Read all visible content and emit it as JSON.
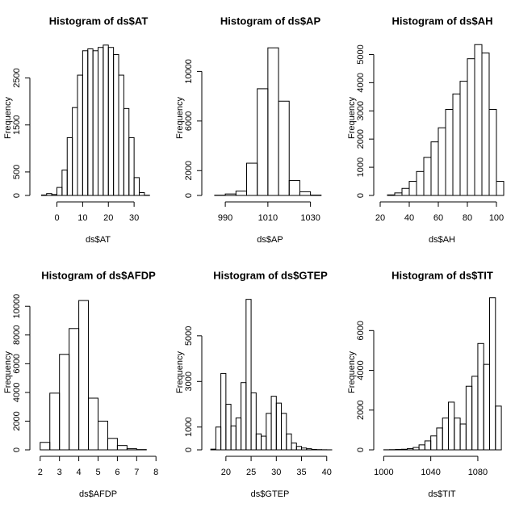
{
  "chart_data": [
    {
      "type": "histogram",
      "title": "Histogram of ds$AT",
      "xlabel": "ds$AT",
      "ylabel": "Frequency",
      "bins": [
        -6,
        -4,
        -2,
        0,
        2,
        4,
        6,
        8,
        10,
        12,
        14,
        16,
        18,
        20,
        22,
        24,
        26,
        28,
        30,
        32,
        34,
        36,
        38
      ],
      "counts": [
        10,
        40,
        20,
        170,
        540,
        1230,
        1870,
        2560,
        3080,
        3120,
        3080,
        3150,
        3200,
        3150,
        3000,
        2560,
        1850,
        1230,
        380,
        60,
        5,
        0
      ],
      "xlim": [
        -8,
        40
      ],
      "ylim": [
        0,
        3300
      ],
      "xticks": [
        0,
        10,
        20,
        30
      ],
      "yticks": [
        0,
        500,
        1500,
        2500
      ]
    },
    {
      "type": "histogram",
      "title": "Histogram of ds$AP",
      "xlabel": "ds$AP",
      "ylabel": "Frequency",
      "bins": [
        985,
        990,
        995,
        1000,
        1005,
        1010,
        1015,
        1020,
        1025,
        1030,
        1035
      ],
      "counts": [
        20,
        120,
        350,
        2600,
        8600,
        11900,
        7600,
        1200,
        300,
        30
      ],
      "xlim": [
        982,
        1040
      ],
      "ylim": [
        0,
        12500
      ],
      "xticks": [
        990,
        1010,
        1030
      ],
      "yticks": [
        0,
        2000,
        6000,
        10000
      ]
    },
    {
      "type": "histogram",
      "title": "Histogram of ds$AH",
      "xlabel": "ds$AH",
      "ylabel": "Frequency",
      "bins": [
        25,
        30,
        35,
        40,
        45,
        50,
        55,
        60,
        65,
        70,
        75,
        80,
        85,
        90,
        95,
        100,
        105
      ],
      "counts": [
        20,
        90,
        250,
        500,
        850,
        1350,
        1900,
        2400,
        3050,
        3600,
        4050,
        4850,
        5350,
        5050,
        3050,
        500
      ],
      "xlim": [
        20,
        105
      ],
      "ylim": [
        0,
        5500
      ],
      "xticks": [
        20,
        40,
        60,
        80,
        100
      ],
      "yticks": [
        0,
        1000,
        2000,
        3000,
        4000,
        5000
      ]
    },
    {
      "type": "histogram",
      "title": "Histogram of ds$AFDP",
      "xlabel": "ds$AFDP",
      "ylabel": "Frequency",
      "bins": [
        2,
        2.5,
        3,
        3.5,
        4,
        4.5,
        5,
        5.5,
        6,
        6.5,
        7,
        7.5
      ],
      "counts": [
        520,
        3950,
        6650,
        8450,
        10400,
        3600,
        2000,
        800,
        300,
        80,
        20
      ],
      "xlim": [
        1.8,
        8.2
      ],
      "ylim": [
        0,
        10800
      ],
      "xticks": [
        2,
        3,
        4,
        5,
        6,
        7,
        8
      ],
      "yticks": [
        0,
        2000,
        4000,
        6000,
        8000,
        10000
      ]
    },
    {
      "type": "histogram",
      "title": "Histogram of ds$GTEP",
      "xlabel": "ds$GTEP",
      "ylabel": "Frequency",
      "bins": [
        17,
        18,
        19,
        20,
        21,
        22,
        23,
        24,
        25,
        26,
        27,
        28,
        29,
        30,
        31,
        32,
        33,
        34,
        35,
        36,
        37,
        38,
        39,
        40,
        41
      ],
      "counts": [
        30,
        1000,
        3350,
        2000,
        1050,
        1400,
        2950,
        6600,
        2500,
        700,
        600,
        1600,
        2350,
        2050,
        1600,
        700,
        300,
        150,
        80,
        50,
        20,
        10,
        5,
        2
      ],
      "xlim": [
        16.5,
        41
      ],
      "ylim": [
        0,
        6800
      ],
      "xticks": [
        20,
        25,
        30,
        35,
        40
      ],
      "yticks": [
        0,
        1000,
        3000,
        5000
      ]
    },
    {
      "type": "histogram",
      "title": "Histogram of ds$TIT",
      "xlabel": "ds$TIT",
      "ylabel": "Frequency",
      "bins": [
        1000,
        1005,
        1010,
        1015,
        1020,
        1025,
        1030,
        1035,
        1040,
        1045,
        1050,
        1055,
        1060,
        1065,
        1070,
        1075,
        1080,
        1085,
        1090,
        1095,
        1100
      ],
      "counts": [
        5,
        10,
        20,
        30,
        60,
        120,
        250,
        450,
        700,
        1100,
        1600,
        2400,
        1600,
        1300,
        3200,
        3700,
        5350,
        4300,
        7650,
        2200
      ],
      "xlim": [
        997,
        1102
      ],
      "ylim": [
        0,
        7800
      ],
      "xticks": [
        1000,
        1040,
        1080
      ],
      "yticks": [
        0,
        2000,
        4000,
        6000
      ]
    }
  ]
}
